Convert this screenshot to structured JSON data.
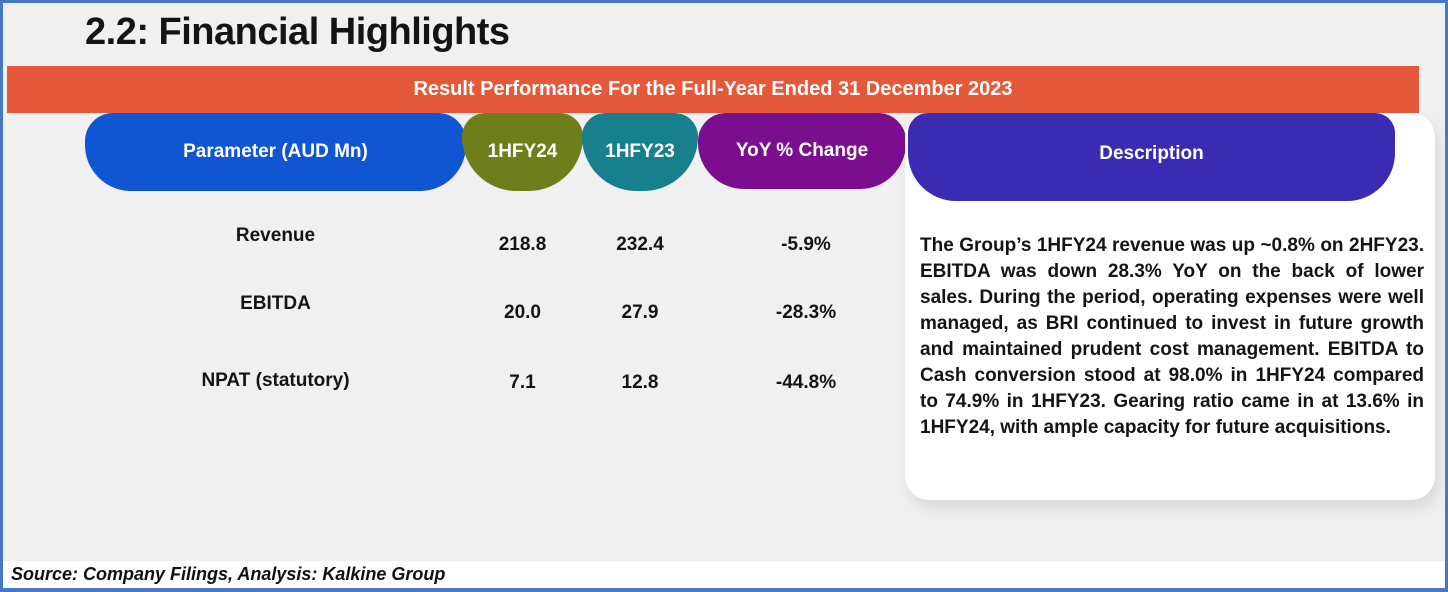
{
  "header": {
    "title": "2.2: Financial Highlights"
  },
  "banner": {
    "text": "Result Performance For the Full-Year Ended 31 December 2023",
    "color": "#E5593A"
  },
  "columns": {
    "parameter": "Parameter (AUD Mn)",
    "fy24": "1HFY24",
    "fy23": "1HFY23",
    "yoy": "YoY % Change",
    "description": "Description"
  },
  "table": {
    "rows": [
      {
        "parameter": "Revenue",
        "fy24": "218.8",
        "fy23": "232.4",
        "yoy": "-5.9%"
      },
      {
        "parameter": "EBITDA",
        "fy24": "20.0",
        "fy23": "27.9",
        "yoy": "-28.3%"
      },
      {
        "parameter": "NPAT (statutory)",
        "fy24": "7.1",
        "fy23": "12.8",
        "yoy": "-44.8%"
      }
    ]
  },
  "description": {
    "text": "The Group’s 1HFY24 revenue was up ~0.8% on 2HFY23. EBITDA was down 28.3% YoY on the back of lower sales. During the period, operating expenses were well managed, as BRI continued to invest in future growth and maintained prudent cost management. EBITDA to Cash conversion stood at 98.0% in 1HFY24 compared to 74.9% in 1HFY23. Gearing ratio came in at 13.6% in 1HFY24, with ample capacity for future acquisitions."
  },
  "footer": {
    "source": "Source: Company Filings, Analysis: Kalkine Group"
  },
  "colors": {
    "banner_orange": "#E5593A",
    "parameter_blue": "#1055D2",
    "fy24_olive": "#6D7E1B",
    "fy23_teal": "#17808C",
    "yoy_purple": "#7B0D8F",
    "description_indigo": "#3A2BB2",
    "frame_border_blue": "#4678C4",
    "background_gray": "#F1F0F0",
    "text_black": "#141414"
  },
  "chart_data": {
    "type": "table",
    "title": "Result Performance For the Full-Year Ended 31 December 2023",
    "columns": [
      "Parameter (AUD Mn)",
      "1HFY24",
      "1HFY23",
      "YoY % Change",
      "Description"
    ],
    "rows": [
      {
        "parameter": "Revenue",
        "1HFY24": 218.8,
        "1HFY23": 232.4,
        "yoy_pct_change": -5.9
      },
      {
        "parameter": "EBITDA",
        "1HFY24": 20.0,
        "1HFY23": 27.9,
        "yoy_pct_change": -28.3
      },
      {
        "parameter": "NPAT (statutory)",
        "1HFY24": 7.1,
        "1HFY23": 12.8,
        "yoy_pct_change": -44.8
      }
    ],
    "units": "AUD Mn",
    "description": "The Group’s 1HFY24 revenue was up ~0.8% on 2HFY23. EBITDA was down 28.3% YoY on the back of lower sales. During the period, operating expenses were well managed, as BRI continued to invest in future growth and maintained prudent cost management. EBITDA to Cash conversion stood at 98.0% in 1HFY24 compared to 74.9% in 1HFY23. Gearing ratio came in at 13.6% in 1HFY24, with ample capacity for future acquisitions."
  }
}
